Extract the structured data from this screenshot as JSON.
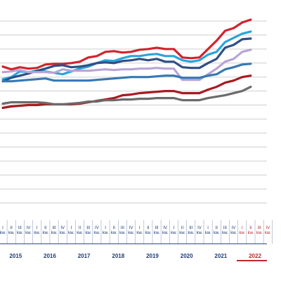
{
  "chart_data": {
    "type": "line",
    "title": "",
    "xlabel": "",
    "ylabel": "",
    "quarters": [
      "I kw.",
      "II kw.",
      "III kw.",
      "IV kw."
    ],
    "years": [
      "2015",
      "2016",
      "2017",
      "2018",
      "2019",
      "2020",
      "2021",
      "2022"
    ],
    "highlight_year": "2022",
    "ylim": [
      0,
      13
    ],
    "gridlines": [
      1,
      2,
      3,
      4,
      5,
      6,
      7,
      8,
      9,
      10,
      11,
      12,
      13
    ],
    "grid": true,
    "series": [
      {
        "color": "#d0242e",
        "values": [
          9.75,
          9.55,
          9.7,
          9.6,
          9.65,
          9.9,
          9.95,
          9.95,
          10.0,
          10.1,
          10.4,
          10.5,
          10.8,
          10.85,
          10.75,
          10.8,
          10.95,
          11.0,
          11.1,
          11.0,
          11.0,
          10.4,
          10.35,
          10.4,
          11.0,
          11.6,
          12.3,
          12.5,
          12.9,
          13.1
        ]
      },
      {
        "color": "#2aa4dc",
        "values": [
          8.85,
          9.0,
          9.4,
          9.35,
          9.45,
          9.4,
          9.3,
          9.2,
          9.4,
          9.6,
          9.75,
          10.0,
          10.2,
          10.15,
          10.35,
          10.5,
          10.5,
          10.6,
          10.65,
          10.5,
          10.5,
          10.2,
          10.1,
          10.2,
          10.6,
          10.8,
          11.5,
          11.8,
          12.1,
          12.25
        ]
      },
      {
        "color": "#2f4f86",
        "values": [
          8.7,
          8.95,
          9.1,
          9.25,
          9.45,
          9.6,
          9.8,
          9.85,
          9.7,
          9.75,
          9.85,
          10.0,
          10.05,
          10.0,
          10.15,
          10.2,
          10.3,
          10.2,
          10.3,
          10.1,
          10.1,
          9.7,
          9.65,
          9.65,
          10.0,
          10.3,
          11.1,
          11.3,
          11.7,
          11.75
        ]
      },
      {
        "color": "#b9a4d6",
        "values": [
          9.35,
          9.4,
          9.5,
          9.35,
          9.35,
          9.35,
          9.3,
          9.55,
          9.45,
          9.45,
          9.45,
          9.5,
          9.55,
          9.5,
          9.55,
          9.55,
          9.6,
          9.6,
          9.65,
          9.6,
          9.6,
          8.8,
          8.8,
          8.8,
          9.2,
          9.6,
          10.1,
          10.3,
          10.8,
          10.95
        ]
      },
      {
        "color": "#3679b3",
        "values": [
          8.7,
          8.7,
          8.75,
          8.8,
          8.85,
          8.9,
          8.75,
          8.75,
          8.75,
          8.75,
          8.75,
          8.8,
          8.85,
          8.9,
          8.95,
          9.0,
          9.0,
          9.0,
          9.05,
          9.1,
          9.1,
          8.95,
          8.95,
          8.95,
          9.1,
          9.2,
          9.55,
          9.7,
          9.9,
          9.95
        ]
      },
      {
        "color": "#a81a22",
        "values": [
          6.8,
          6.9,
          6.95,
          7.0,
          7.0,
          7.05,
          7.05,
          7.05,
          7.05,
          7.1,
          7.2,
          7.3,
          7.4,
          7.5,
          7.7,
          7.75,
          7.85,
          7.9,
          7.95,
          8.0,
          8.0,
          7.85,
          7.85,
          7.85,
          8.1,
          8.3,
          8.6,
          8.75,
          9.0,
          9.1
        ]
      },
      {
        "color": "#6b6b6b",
        "values": [
          7.1,
          7.2,
          7.2,
          7.2,
          7.2,
          7.15,
          7.05,
          7.05,
          7.1,
          7.15,
          7.25,
          7.25,
          7.35,
          7.35,
          7.4,
          7.4,
          7.45,
          7.45,
          7.5,
          7.5,
          7.5,
          7.35,
          7.35,
          7.35,
          7.5,
          7.6,
          7.7,
          7.85,
          8.0,
          8.3
        ]
      }
    ]
  }
}
